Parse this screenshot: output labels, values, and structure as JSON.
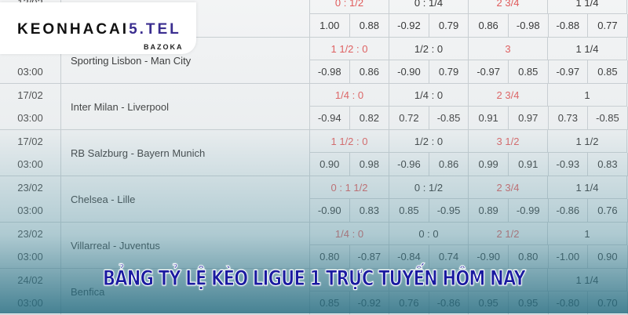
{
  "logo": {
    "text_main": "KEONHACAI",
    "text_accent": "5.TEL",
    "sub": "BAZOKA"
  },
  "banner": "BẢNG TỶ LỆ KÈO LIGUE 1 TRỰC TUYẾN HÔM NAY",
  "colors": {
    "handicap_red": "#e05a5a",
    "banner_blue": "#1a1aa0"
  },
  "matches": [
    {
      "date": "13/02",
      "time": "",
      "teams": "",
      "h1": "0 : 1/2",
      "h2": "0 : 1/4",
      "h3": "2 3/4",
      "h4": "1 1/4",
      "odds": [
        "1.00",
        "0.88",
        "-0.92",
        "0.79",
        "0.86",
        "-0.98",
        "-0.88",
        "0.77"
      ]
    },
    {
      "date": "",
      "time": "03:00",
      "teams": "Sporting Lisbon - Man City",
      "h1": "1 1/2 : 0",
      "h2": "1/2 : 0",
      "h3": "3",
      "h4": "1 1/4",
      "odds": [
        "-0.98",
        "0.86",
        "-0.90",
        "0.79",
        "-0.97",
        "0.85",
        "-0.97",
        "0.85"
      ]
    },
    {
      "date": "17/02",
      "time": "03:00",
      "teams": "Inter Milan - Liverpool",
      "h1": "1/4 : 0",
      "h2": "1/4 : 0",
      "h3": "2 3/4",
      "h4": "1",
      "odds": [
        "-0.94",
        "0.82",
        "0.72",
        "-0.85",
        "0.91",
        "0.97",
        "0.73",
        "-0.85"
      ]
    },
    {
      "date": "17/02",
      "time": "03:00",
      "teams": "RB Salzburg - Bayern Munich",
      "h1": "1 1/2 : 0",
      "h2": "1/2 : 0",
      "h3": "3 1/2",
      "h4": "1 1/2",
      "odds": [
        "0.90",
        "0.98",
        "-0.96",
        "0.86",
        "0.99",
        "0.91",
        "-0.93",
        "0.83"
      ]
    },
    {
      "date": "23/02",
      "time": "03:00",
      "teams": "Chelsea - Lille",
      "h1": "0 : 1 1/2",
      "h2": "0 : 1/2",
      "h3": "2 3/4",
      "h4": "1 1/4",
      "odds": [
        "-0.90",
        "0.83",
        "0.85",
        "-0.95",
        "0.89",
        "-0.99",
        "-0.86",
        "0.76"
      ]
    },
    {
      "date": "23/02",
      "time": "03:00",
      "teams": "Villarreal - Juventus",
      "h1": "1/4 : 0",
      "h2": "0 : 0",
      "h3": "2 1/2",
      "h4": "1",
      "odds": [
        "0.80",
        "-0.87",
        "-0.84",
        "0.74",
        "-0.90",
        "0.80",
        "-1.00",
        "0.90"
      ]
    },
    {
      "date": "24/02",
      "time": "03:00",
      "teams": "Benfica",
      "h1": "",
      "h2": "",
      "h3": "",
      "h4": "1 1/4",
      "odds": [
        "0.85",
        "-0.92",
        "0.76",
        "-0.86",
        "0.95",
        "0.95",
        "-0.80",
        "0.70"
      ]
    }
  ]
}
